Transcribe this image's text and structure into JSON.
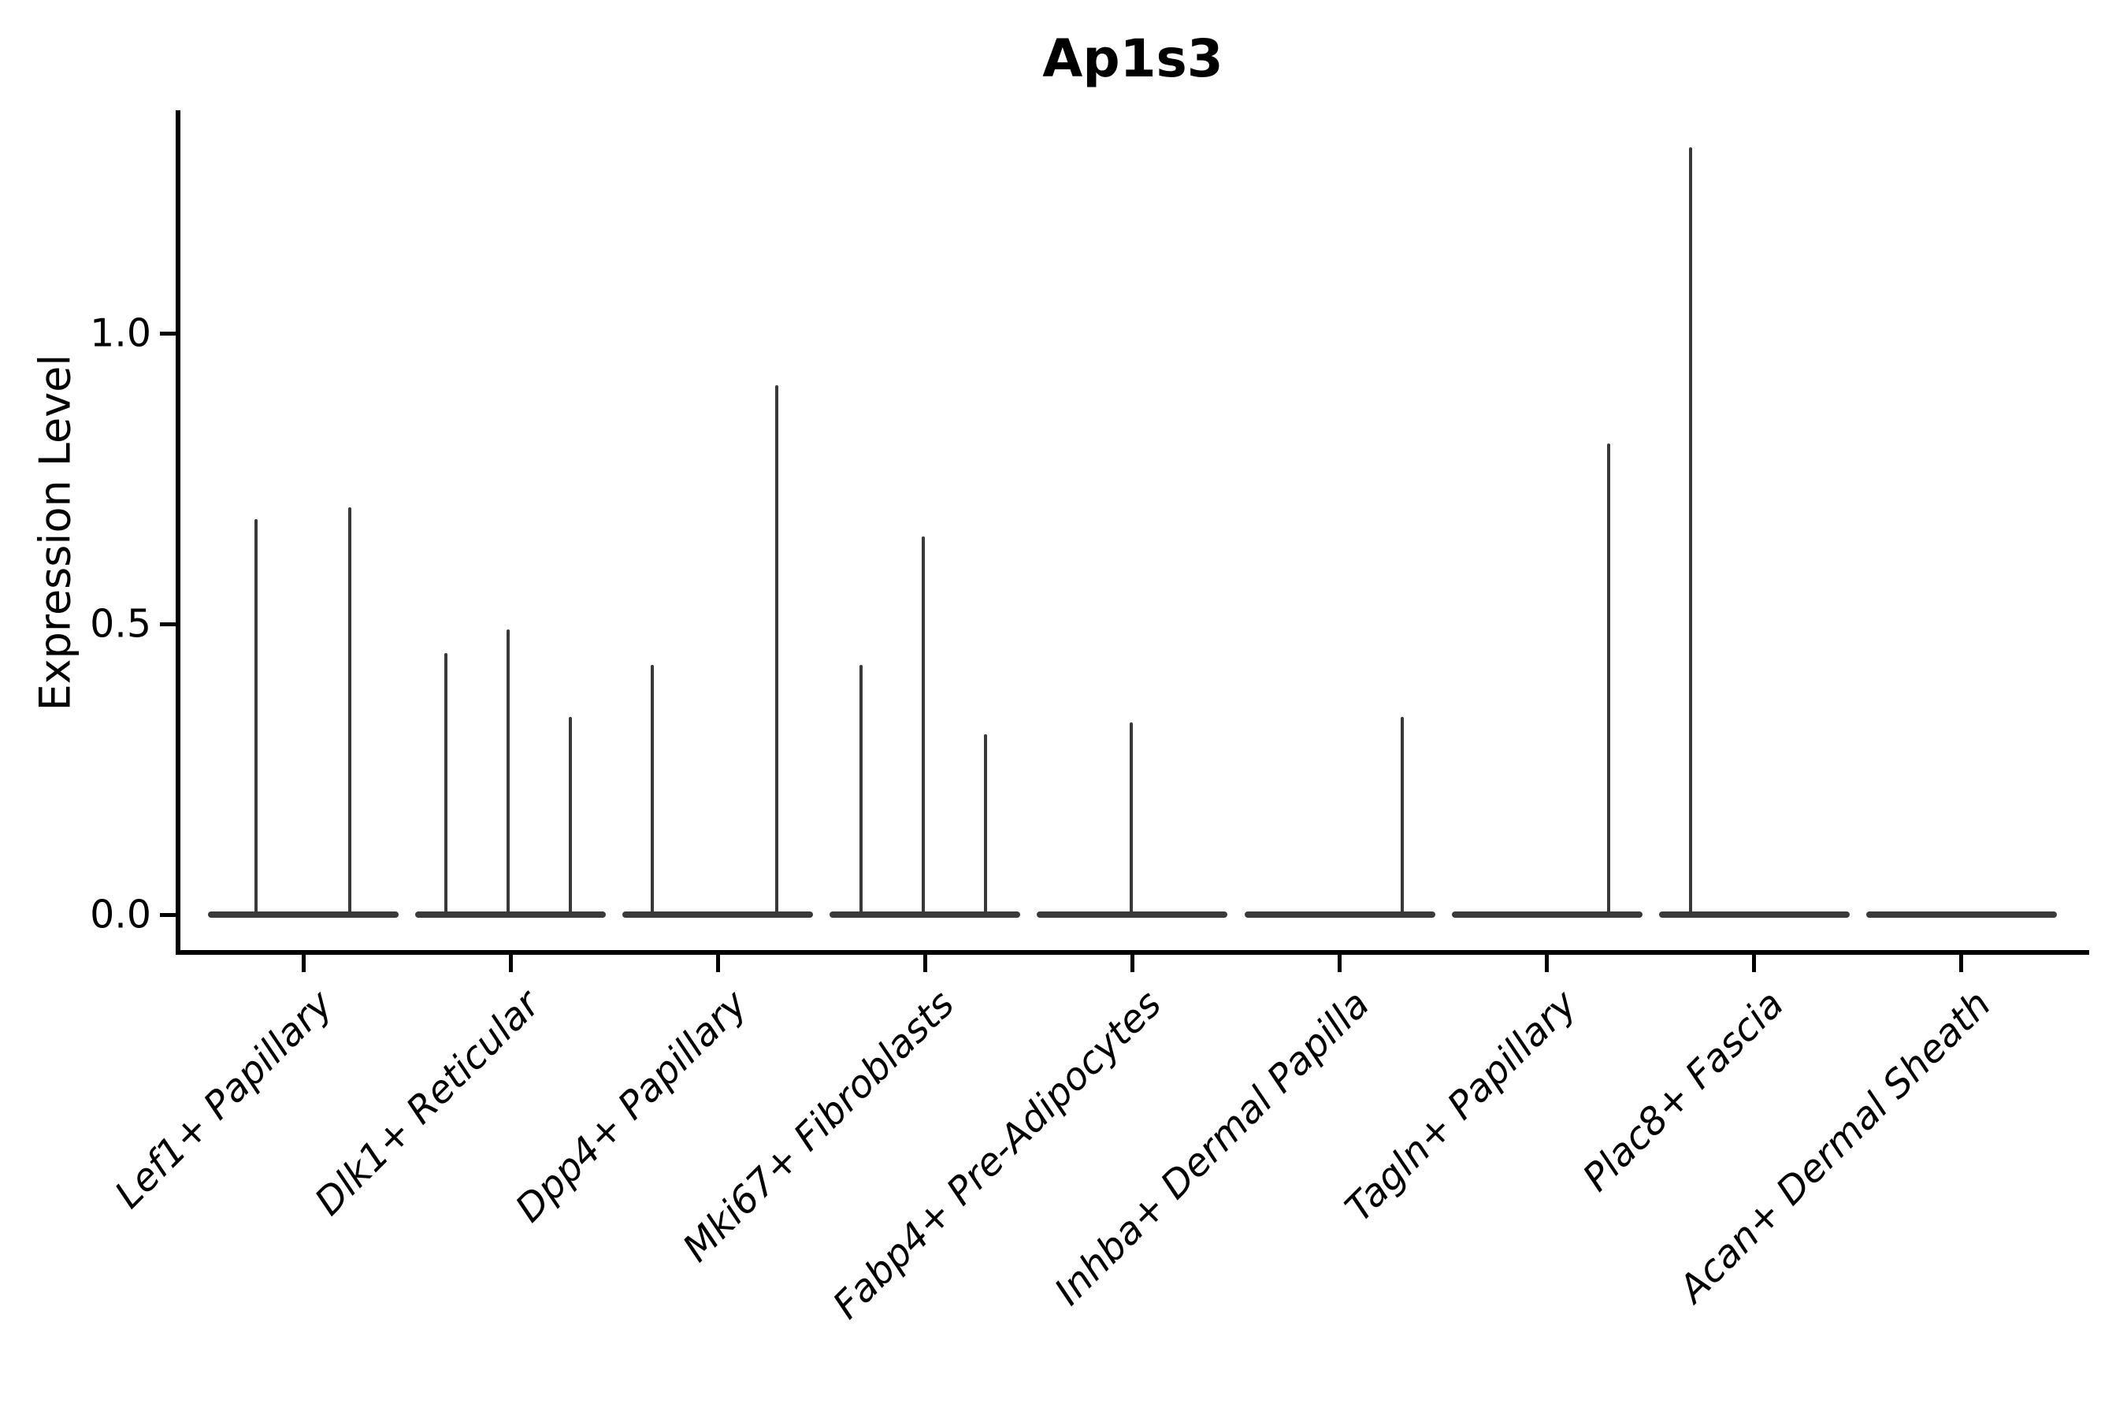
{
  "title": "Ap1s3",
  "ylabel": "Expression Level",
  "chart_data": {
    "type": "violin",
    "title": "Ap1s3",
    "xlabel": "",
    "ylabel": "Expression Level",
    "ylim": [
      -0.06,
      1.38
    ],
    "yticks": [
      0.0,
      0.5,
      1.0
    ],
    "ytick_labels": [
      "0.0",
      "0.5",
      "1.0"
    ],
    "grid": false,
    "legend": null,
    "note": "Violin plot of gene expression; each cell-type violin is flat at 0 with thin density spikes reaching the listed maxima. Spike offsets are horizontal px offsets from the category center.",
    "categories": [
      "Lef1+ Papillary",
      "Dlk1+ Reticular",
      "Dpp4+ Papillary",
      "Mki67+ Fibroblasts",
      "Fabp4+ Pre-Adipocytes",
      "Inhba+ Dermal Papilla",
      "Tagln+ Papillary",
      "Plac8+ Fascia",
      "Acan+ Dermal Sheath"
    ],
    "violins": [
      {
        "category": "Lef1+ Papillary",
        "spikes": [
          {
            "offset": -60,
            "value": 0.68
          },
          {
            "offset": 59,
            "value": 0.7
          }
        ]
      },
      {
        "category": "Dlk1+ Reticular",
        "spikes": [
          {
            "offset": -82,
            "value": 0.45
          },
          {
            "offset": -3,
            "value": 0.49
          },
          {
            "offset": 76,
            "value": 0.34
          }
        ]
      },
      {
        "category": "Dpp4+ Papillary",
        "spikes": [
          {
            "offset": -83,
            "value": 0.43
          },
          {
            "offset": 75,
            "value": 0.91
          }
        ]
      },
      {
        "category": "Mki67+ Fibroblasts",
        "spikes": [
          {
            "offset": -81,
            "value": 0.43
          },
          {
            "offset": -2,
            "value": 0.65
          },
          {
            "offset": 77,
            "value": 0.31
          }
        ]
      },
      {
        "category": "Fabp4+ Pre-Adipocytes",
        "spikes": [
          {
            "offset": -1,
            "value": 0.33
          }
        ]
      },
      {
        "category": "Inhba+ Dermal Papilla",
        "spikes": [
          {
            "offset": 79,
            "value": 0.34
          }
        ]
      },
      {
        "category": "Tagln+ Papillary",
        "spikes": [
          {
            "offset": 78,
            "value": 0.81
          }
        ]
      },
      {
        "category": "Plac8+ Fascia",
        "spikes": [
          {
            "offset": -81,
            "value": 1.32
          }
        ]
      },
      {
        "category": "Acan+ Dermal Sheath",
        "spikes": []
      }
    ]
  }
}
